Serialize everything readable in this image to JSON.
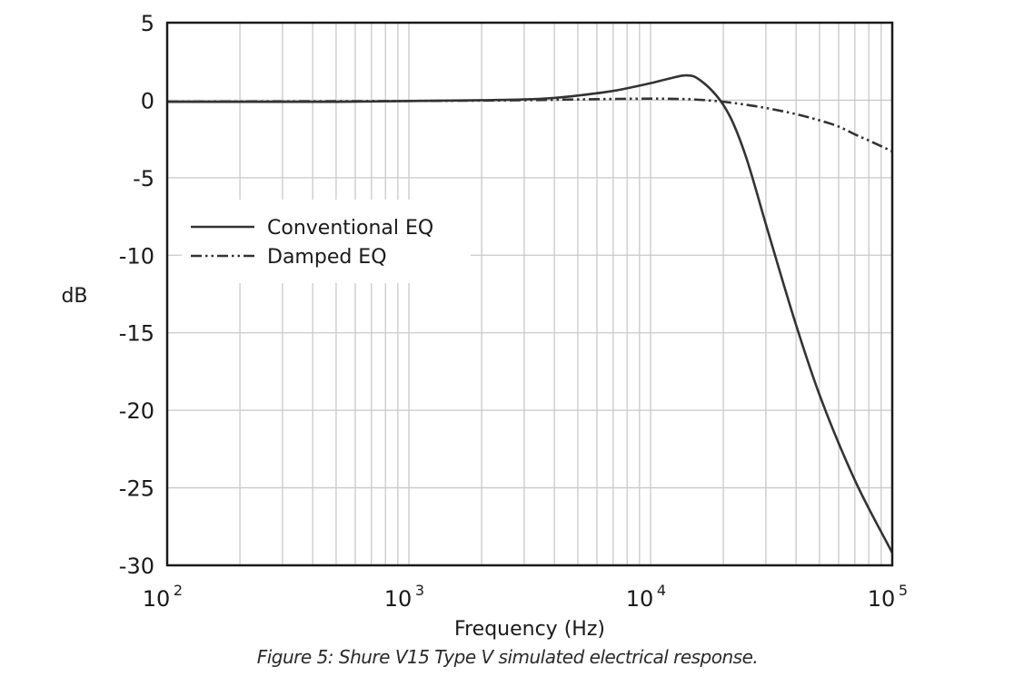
{
  "chart_data": {
    "type": "line",
    "title": "",
    "xlabel": "Frequency (Hz)",
    "ylabel": "dB",
    "x_scale": "log",
    "xlim": [
      100,
      100000
    ],
    "ylim": [
      -30,
      5
    ],
    "x_ticks": [
      {
        "value": 100,
        "base": "10",
        "exp": "2"
      },
      {
        "value": 1000,
        "base": "10",
        "exp": "3"
      },
      {
        "value": 10000,
        "base": "10",
        "exp": "4"
      },
      {
        "value": 100000,
        "base": "10",
        "exp": "5"
      }
    ],
    "y_ticks": [
      {
        "value": 5,
        "label": "5"
      },
      {
        "value": 0,
        "label": "0"
      },
      {
        "value": -5,
        "label": "-5"
      },
      {
        "value": -10,
        "label": "-10"
      },
      {
        "value": -15,
        "label": "-15"
      },
      {
        "value": -20,
        "label": "-20"
      },
      {
        "value": -25,
        "label": "-25"
      },
      {
        "value": -30,
        "label": "-30"
      }
    ],
    "grid": true,
    "legend_position": "center-left",
    "series": [
      {
        "name": "Conventional EQ",
        "style": "solid",
        "color": "#333333",
        "x": [
          100,
          200,
          500,
          1000,
          2000,
          3000,
          4000,
          5000,
          7000,
          10000,
          12000,
          14000,
          15000,
          16000,
          18000,
          20000,
          22000,
          25000,
          30000,
          40000,
          50000,
          70000,
          100000
        ],
        "y": [
          -0.1,
          -0.1,
          -0.1,
          -0.05,
          0,
          0.05,
          0.15,
          0.3,
          0.6,
          1.1,
          1.4,
          1.6,
          1.55,
          1.3,
          0.6,
          -0.3,
          -1.5,
          -3.8,
          -8,
          -14.5,
          -19,
          -24.5,
          -29.2
        ]
      },
      {
        "name": "Damped EQ",
        "style": "dash-dot-dot",
        "color": "#333333",
        "x": [
          100,
          1000,
          3000,
          5000,
          10000,
          15000,
          20000,
          25000,
          30000,
          40000,
          50000,
          60000,
          70000,
          80000,
          100000
        ],
        "y": [
          -0.1,
          -0.05,
          0,
          0.05,
          0.1,
          0.05,
          -0.1,
          -0.3,
          -0.5,
          -0.9,
          -1.3,
          -1.7,
          -2.2,
          -2.6,
          -3.3
        ]
      }
    ]
  },
  "caption": "Figure 5: Shure V15 Type V simulated electrical response."
}
